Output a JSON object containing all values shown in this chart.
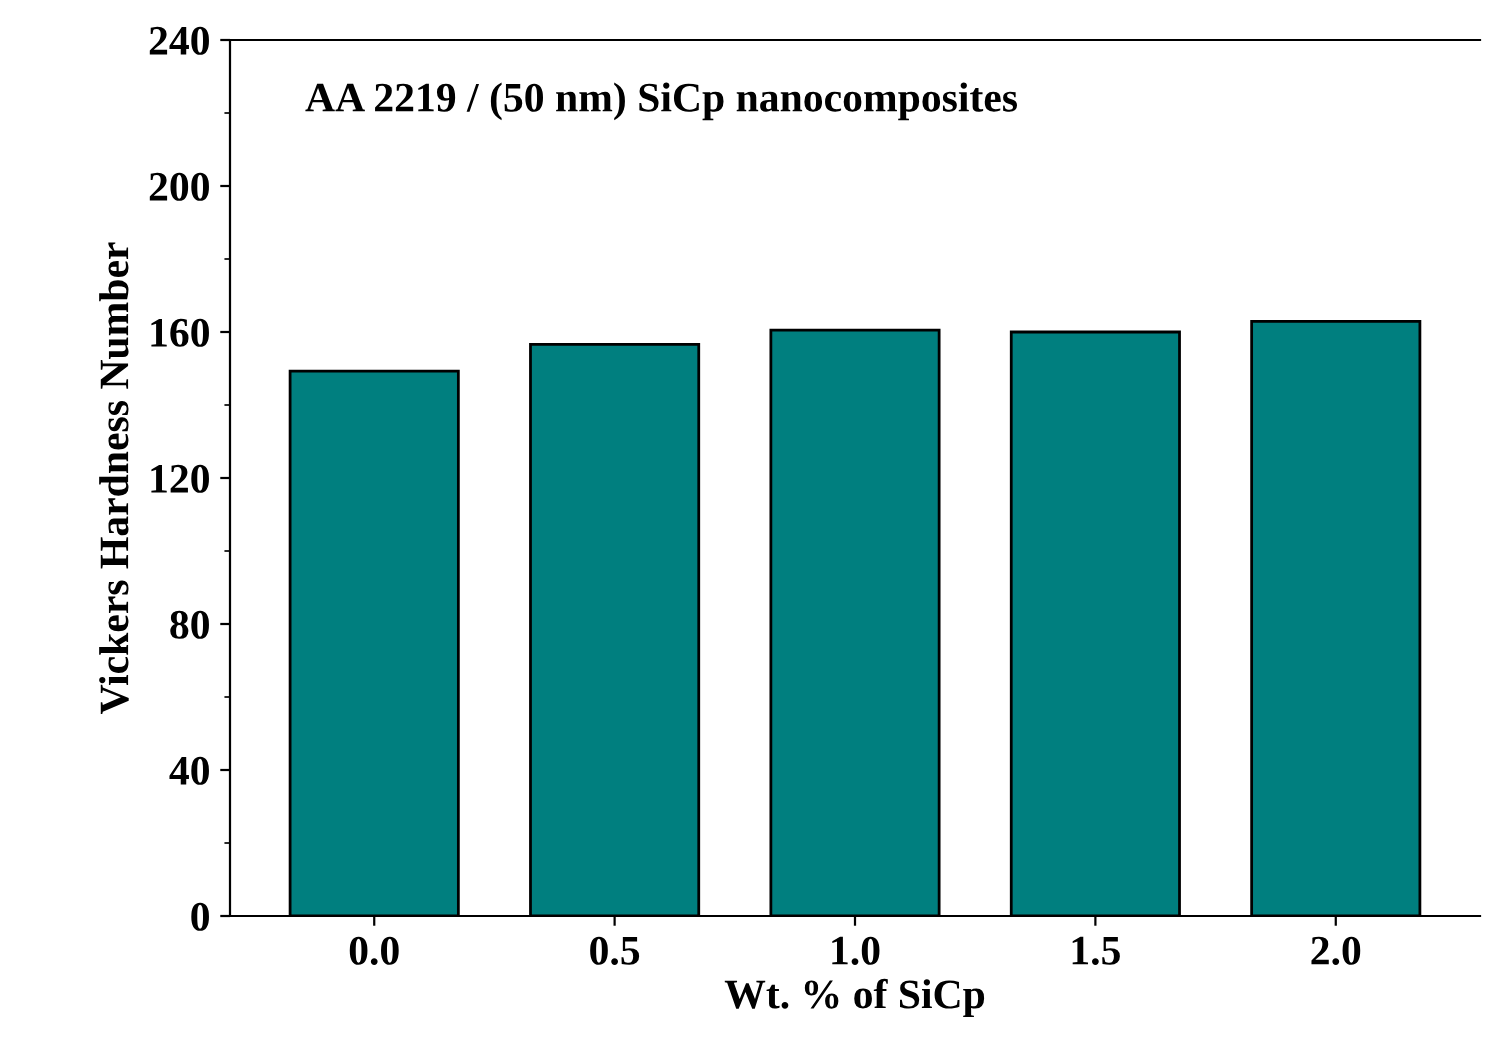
{
  "chart_data": {
    "type": "bar",
    "title": "AA 2219 / (50 nm) SiCp nanocomposites",
    "categories": [
      "0.0",
      "0.5",
      "1.0",
      "1.5",
      "2.0"
    ],
    "values": [
      149.3,
      156.6,
      160.5,
      160,
      162.9
    ],
    "color": "#007f7f",
    "xlabel": "Wt. % of SiCp",
    "ylabel": "Vickers Hardness Number",
    "ylim": [
      0,
      240
    ],
    "yticks": [
      0,
      40,
      80,
      120,
      160,
      200,
      240
    ],
    "grid": false,
    "legend": false
  }
}
